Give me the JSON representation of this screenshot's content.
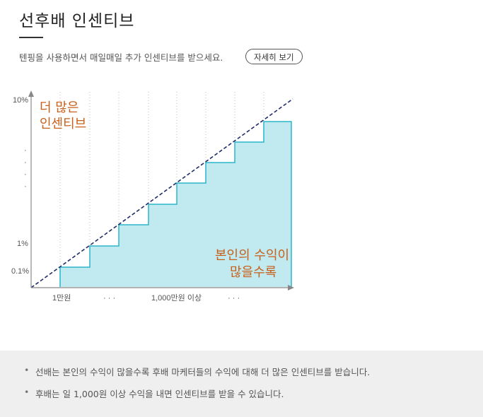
{
  "header": {
    "title": "선후배 인센티브",
    "subtitle": "텐핑을 사용하면서 매일매일 추가 인센티브를 받으세요.",
    "more_button": "자세히 보기"
  },
  "chart_data": {
    "type": "area",
    "style": "step",
    "y_ticks": [
      "10%",
      "1%",
      "0.1%"
    ],
    "x_ticks": [
      "1만원",
      "· · ·",
      "1,000만원 이상",
      "· · ·"
    ],
    "annotations": [
      "더 많은",
      "인센티브",
      "본인의 수익이",
      "많을수록"
    ],
    "steps": 8,
    "trend_line": "dashed",
    "grid": "vertical dotted",
    "colors": {
      "fill": "#c0e9f0",
      "step_line": "#2bb5c8",
      "trend": "#1f2d6b",
      "annotation": "#c8601a"
    }
  },
  "notes": [
    "선배는 본인의 수익이 많을수록 후배 마케터들의 수익에 대해 더 많은 인센티브를 받습니다.",
    "후배는 일 1,000원 이상 수익을 내면 인센티브를 받을 수 있습니다."
  ]
}
